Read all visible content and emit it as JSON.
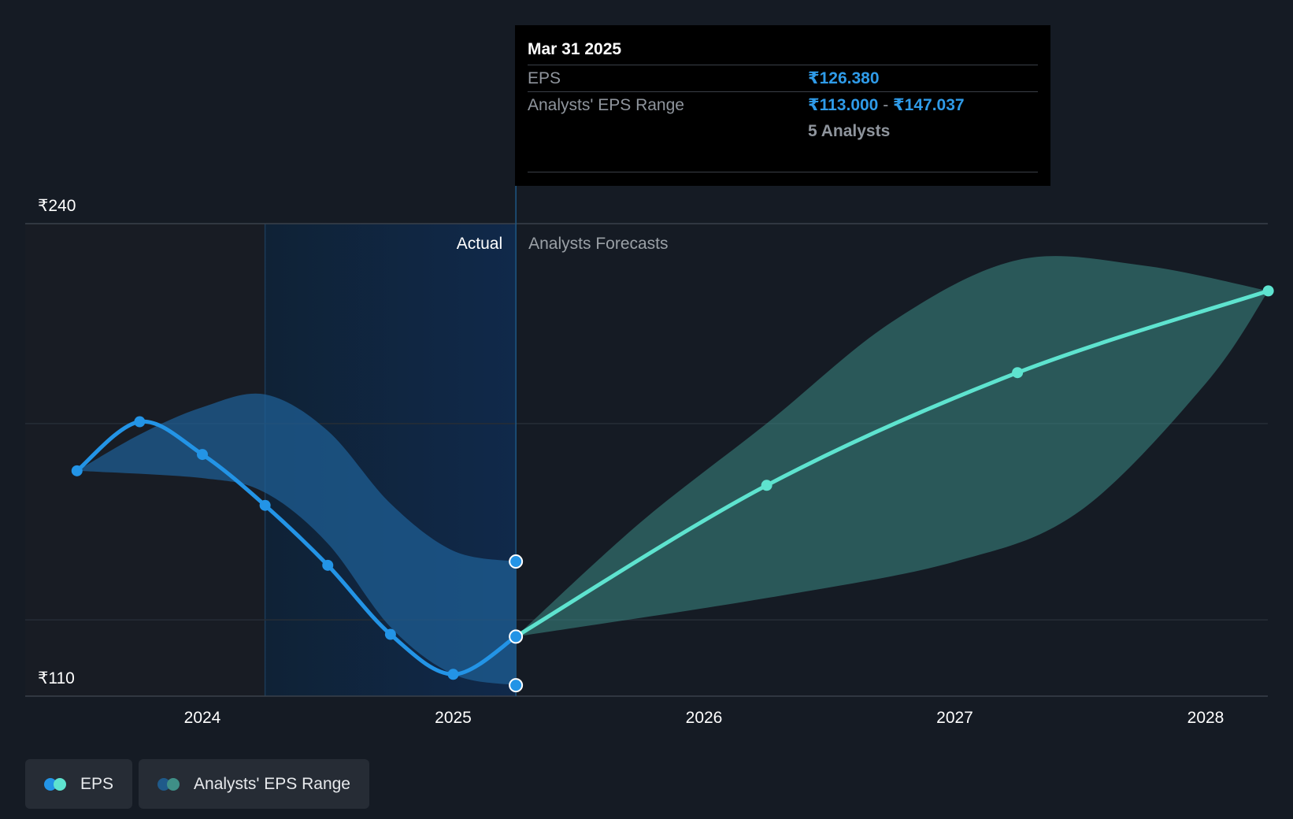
{
  "chart_data": {
    "type": "line",
    "title": "",
    "currency_symbol": "₹",
    "y_axis_labels": [
      "₹240",
      "₹110"
    ],
    "ylim": [
      110,
      240
    ],
    "x_ticks": [
      "2024",
      "2025",
      "2026",
      "2027",
      "2028"
    ],
    "divider_date": "Mar 31 2025",
    "section_labels": {
      "actual": "Actual",
      "forecast": "Analysts Forecasts"
    },
    "series": [
      {
        "name": "EPS (Actual)",
        "color": "#2394e6",
        "points": [
          {
            "date": 2023.5,
            "value": 172.0
          },
          {
            "date": 2023.75,
            "value": 185.5
          },
          {
            "date": 2024.0,
            "value": 176.5
          },
          {
            "date": 2024.25,
            "value": 162.5
          },
          {
            "date": 2024.5,
            "value": 146.0
          },
          {
            "date": 2024.75,
            "value": 127.0
          },
          {
            "date": 2025.0,
            "value": 116.0
          },
          {
            "date": 2025.25,
            "value": 126.38
          }
        ]
      },
      {
        "name": "EPS (Forecast)",
        "color": "#5ee3cf",
        "points": [
          {
            "date": 2025.25,
            "value": 126.38
          },
          {
            "date": 2026.25,
            "value": 168.0
          },
          {
            "date": 2027.25,
            "value": 199.0
          },
          {
            "date": 2028.25,
            "value": 221.5
          }
        ]
      }
    ],
    "range_actual": {
      "upper": [
        {
          "date": 2023.5,
          "value": 172.0
        },
        {
          "date": 2023.75,
          "value": 182.0
        },
        {
          "date": 2024.0,
          "value": 189.5
        },
        {
          "date": 2024.25,
          "value": 193.0
        },
        {
          "date": 2024.5,
          "value": 183.0
        },
        {
          "date": 2024.75,
          "value": 163.0
        },
        {
          "date": 2025.0,
          "value": 150.0
        },
        {
          "date": 2025.25,
          "value": 147.037
        }
      ],
      "lower": [
        {
          "date": 2023.5,
          "value": 172.0
        },
        {
          "date": 2024.0,
          "value": 170.0
        },
        {
          "date": 2024.25,
          "value": 166.0
        },
        {
          "date": 2024.5,
          "value": 152.0
        },
        {
          "date": 2024.75,
          "value": 129.0
        },
        {
          "date": 2025.0,
          "value": 116.0
        },
        {
          "date": 2025.25,
          "value": 113.0
        }
      ]
    },
    "range_forecast": {
      "upper": [
        {
          "date": 2025.25,
          "value": 126.38
        },
        {
          "date": 2025.75,
          "value": 158.0
        },
        {
          "date": 2026.25,
          "value": 185.0
        },
        {
          "date": 2026.75,
          "value": 213.0
        },
        {
          "date": 2027.25,
          "value": 230.0
        },
        {
          "date": 2027.75,
          "value": 228.5
        },
        {
          "date": 2028.25,
          "value": 221.5
        }
      ],
      "lower": [
        {
          "date": 2025.25,
          "value": 126.38
        },
        {
          "date": 2026.25,
          "value": 137.0
        },
        {
          "date": 2027.0,
          "value": 147.0
        },
        {
          "date": 2027.5,
          "value": 161.0
        },
        {
          "date": 2028.0,
          "value": 196.0
        },
        {
          "date": 2028.25,
          "value": 221.5
        }
      ]
    }
  },
  "tooltip": {
    "date": "Mar 31 2025",
    "eps_label": "EPS",
    "eps_value": "₹126.380",
    "range_label": "Analysts' EPS Range",
    "range_low": "₹113.000",
    "range_sep": " - ",
    "range_high": "₹147.037",
    "analysts": "5 Analysts"
  },
  "legend": {
    "eps_label": "EPS",
    "range_label": "Analysts' EPS Range",
    "colors": {
      "eps_actual": "#2394e6",
      "eps_forecast": "#5ee3cf",
      "range_actual": "#1f5a8a",
      "range_forecast": "#3f8f87"
    }
  }
}
